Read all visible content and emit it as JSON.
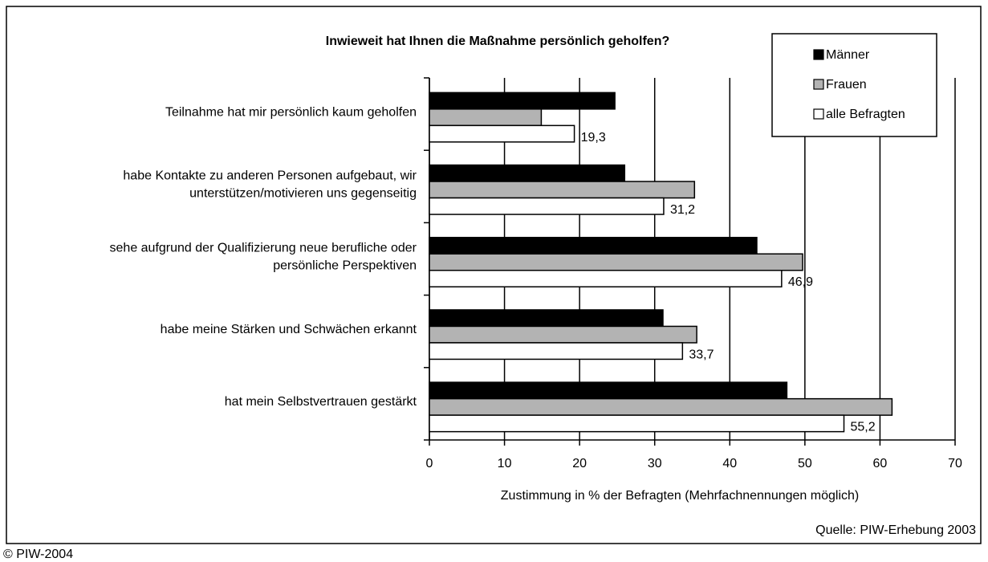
{
  "chart_data": {
    "type": "barh",
    "title": "Inwieweit hat Ihnen die Maßnahme persönlich geholfen?",
    "categories": [
      "Teilnahme hat mir persönlich kaum geholfen",
      "habe Kontakte zu anderen Personen aufgebaut, wir\nunterstützen/motivieren uns gegenseitig",
      "sehe aufgrund der Qualifizierung neue berufliche oder\npersönliche Perspektiven",
      "habe meine Stärken und Schwächen erkannt",
      "hat mein Selbstvertrauen gestärkt"
    ],
    "series": [
      {
        "name": "Männer",
        "color": "#000000",
        "values": [
          24.7,
          26.0,
          43.6,
          31.1,
          47.6
        ]
      },
      {
        "name": "Frauen",
        "color": "#b3b3b3",
        "values": [
          14.9,
          35.3,
          49.7,
          35.6,
          61.6
        ]
      },
      {
        "name": "alle Befragten",
        "color": "#ffffff",
        "values": [
          19.3,
          31.2,
          46.9,
          33.7,
          55.2
        ],
        "value_labels": [
          "19,3",
          "31,2",
          "46,9",
          "33,7",
          "55,2"
        ]
      }
    ],
    "xlim": [
      0,
      70
    ],
    "xticks": [
      0,
      10,
      20,
      30,
      40,
      50,
      60,
      70
    ],
    "grid": true,
    "xlabel": "Zustimmung in % der Befragten (Mehrfachnennungen möglich)",
    "legend": "upper right",
    "source": "Quelle: PIW-Erhebung 2003",
    "copyright": "© PIW-2004"
  }
}
